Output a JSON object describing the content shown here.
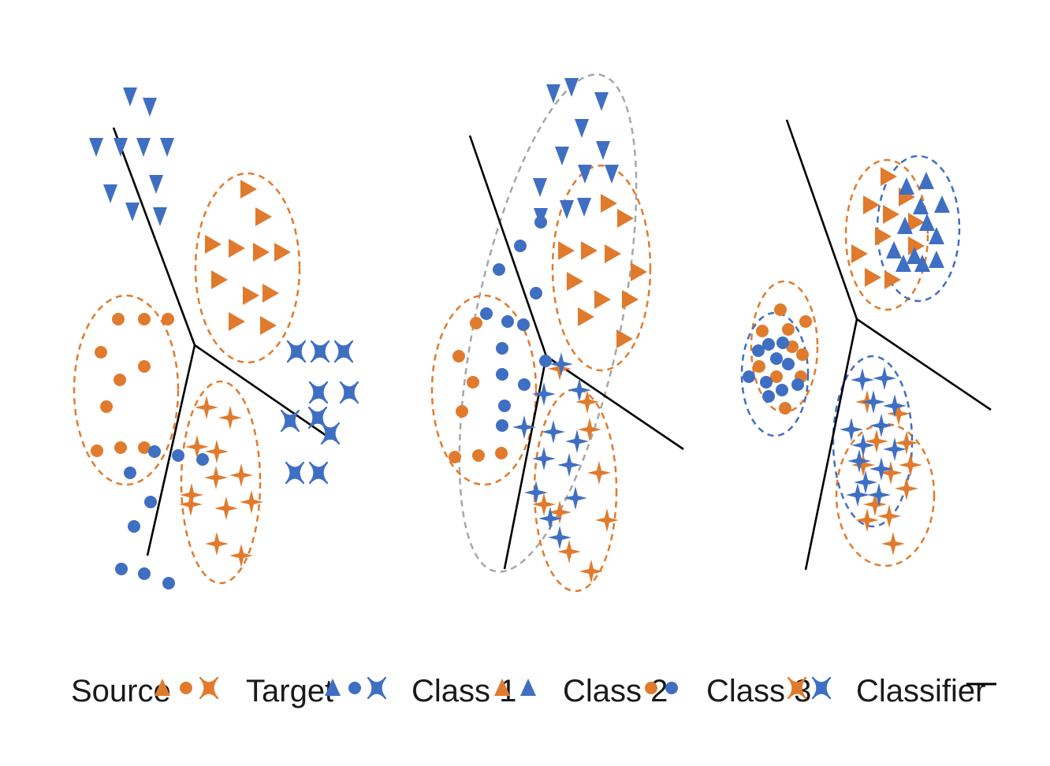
{
  "colors": {
    "source": "#e07b2e",
    "target": "#3f6fc2",
    "classifier": "#000000",
    "envelope": "#a6a6a6"
  },
  "panels": [
    {
      "name": "panel-1"
    },
    {
      "name": "panel-2"
    },
    {
      "name": "panel-3"
    }
  ],
  "legend": {
    "source": {
      "label": "Source",
      "icons": [
        "triangle",
        "circle",
        "x"
      ]
    },
    "target": {
      "label": "Target",
      "icons": [
        "triangle",
        "circle",
        "x"
      ]
    },
    "class1": {
      "label": "Class 1",
      "icons": [
        "triangle",
        "triangle"
      ]
    },
    "class2": {
      "label": "Class 2",
      "icons": [
        "circle",
        "circle"
      ]
    },
    "class3": {
      "label": "Class 3",
      "icons": [
        "x",
        "x"
      ]
    },
    "classifier": {
      "label": "Classifier",
      "icons": [
        "line"
      ]
    }
  }
}
